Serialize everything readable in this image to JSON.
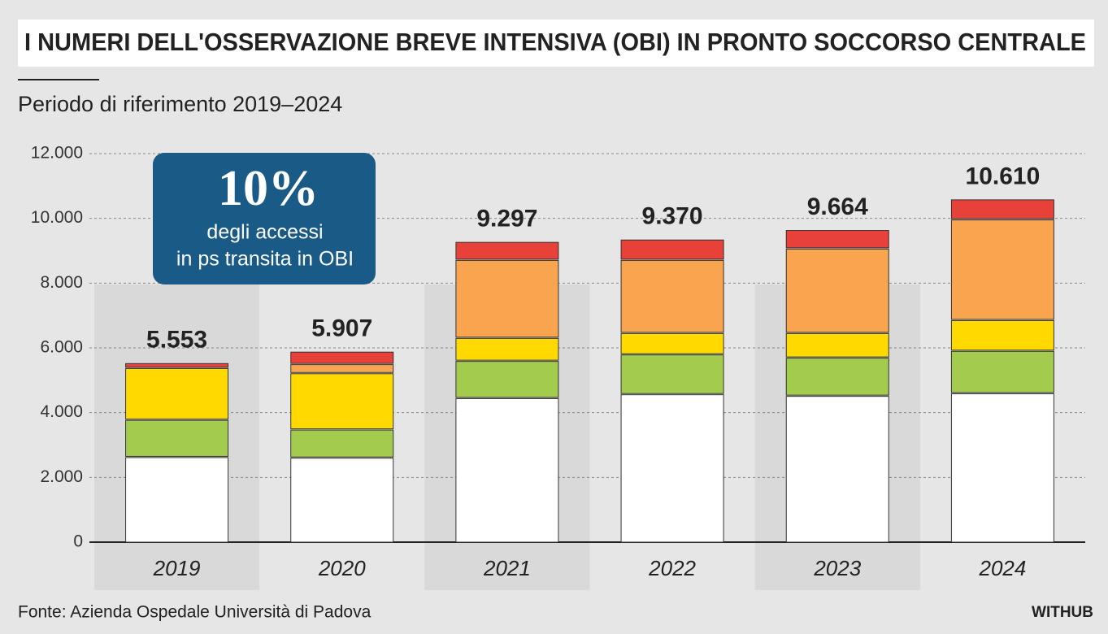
{
  "chart_data": {
    "type": "stacked_bar",
    "title": "I NUMERI DELL'OSSERVAZIONE BREVE INTENSIVA (OBI) IN PRONTO SOCCORSO CENTRALE",
    "subtitle": "Periodo di riferimento 2019–2024",
    "annotation": {
      "big": "10%",
      "line1": "degli accessi",
      "line2": "in ps transita in OBI"
    },
    "source": "Fonte: Azienda Ospedale Università di Padova",
    "brand": "WITHUB",
    "categories": [
      "2019",
      "2020",
      "2021",
      "2022",
      "2023",
      "2024"
    ],
    "series": [
      {
        "color": "#ffffff",
        "values": [
          2650,
          2630,
          4470,
          4590,
          4540,
          4620
        ]
      },
      {
        "color": "#a3cc4f",
        "values": [
          1150,
          870,
          1150,
          1230,
          1180,
          1310
        ]
      },
      {
        "color": "#ffd900",
        "values": [
          1600,
          1740,
          710,
          660,
          760,
          950
        ]
      },
      {
        "color": "#f9a54f",
        "values": [
          0,
          280,
          2410,
          2260,
          2610,
          3110
        ]
      },
      {
        "color": "#e8413a",
        "values": [
          153,
          387,
          557,
          630,
          574,
          620
        ]
      }
    ],
    "totals": {
      "values": [
        5553,
        5907,
        9297,
        9370,
        9664,
        10610
      ],
      "value_labels": [
        "5.553",
        "5.907",
        "9.297",
        "9.370",
        "9.664",
        "10.610"
      ]
    },
    "ylim": [
      0,
      12000
    ],
    "yticks": [
      0,
      {
        "value": 2000,
        "label": "2.000"
      },
      {
        "value": 4000,
        "label": "4.000"
      },
      {
        "value": 6000,
        "label": "6.000"
      },
      {
        "value": 8000,
        "label": "8.000"
      },
      {
        "value": 10000,
        "label": "10.000"
      },
      {
        "value": 12000,
        "label": "12.000"
      }
    ],
    "grid": true
  }
}
